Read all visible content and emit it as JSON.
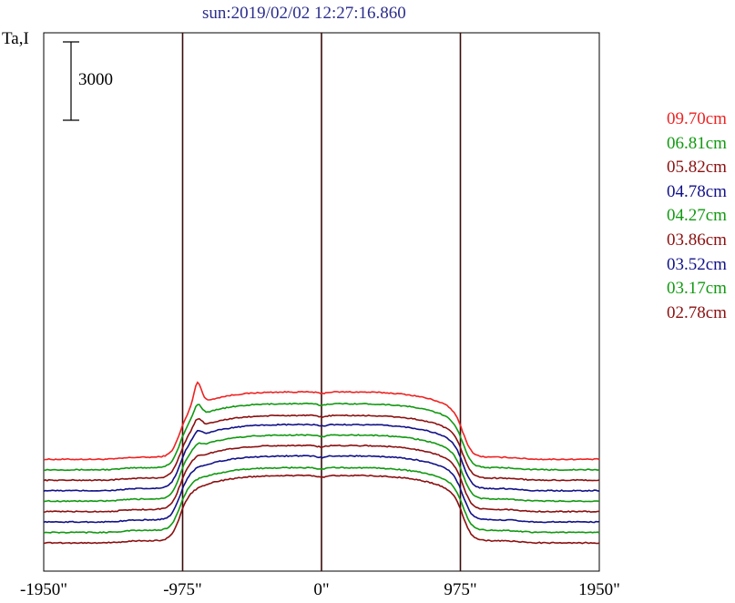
{
  "chart_data": {
    "type": "line",
    "title": "sun:2019/02/02 12:27:16.860",
    "ylabel": "Ta,I",
    "scale_bar_label": "3000",
    "scale_bar_value": 3000,
    "xlim": [
      -1950,
      1950
    ],
    "x_ticks": [
      {
        "value": -1950,
        "label": "-1950\""
      },
      {
        "value": -975,
        "label": "-975\""
      },
      {
        "value": 0,
        "label": "0\""
      },
      {
        "value": 975,
        "label": "975\""
      },
      {
        "value": 1950,
        "label": "1950\""
      }
    ],
    "vlines": [
      -975,
      0,
      975
    ],
    "series": [
      {
        "name": "09.70cm",
        "color": "#ee2222",
        "baseline": 3200,
        "peak": 2500,
        "limb_spike": 850
      },
      {
        "name": "06.81cm",
        "color": "#119911",
        "baseline": 2800,
        "peak": 2450,
        "limb_spike": 450
      },
      {
        "name": "05.82cm",
        "color": "#8b1010",
        "baseline": 2400,
        "peak": 2400,
        "limb_spike": 350
      },
      {
        "name": "04.78cm",
        "color": "#111188",
        "baseline": 2000,
        "peak": 2450,
        "limb_spike": 250
      },
      {
        "name": "04.27cm",
        "color": "#119911",
        "baseline": 1600,
        "peak": 2450,
        "limb_spike": 150
      },
      {
        "name": "03.86cm",
        "color": "#8b1010",
        "baseline": 1200,
        "peak": 2450,
        "limb_spike": 80
      },
      {
        "name": "03.52cm",
        "color": "#111188",
        "baseline": 800,
        "peak": 2450,
        "limb_spike": 50
      },
      {
        "name": "03.17cm",
        "color": "#119911",
        "baseline": 400,
        "peak": 2400,
        "limb_spike": 30
      },
      {
        "name": "02.78cm",
        "color": "#8b1010",
        "baseline": 0,
        "peak": 2500,
        "limb_spike": 0
      }
    ],
    "grid": false,
    "legend_position": "right"
  }
}
